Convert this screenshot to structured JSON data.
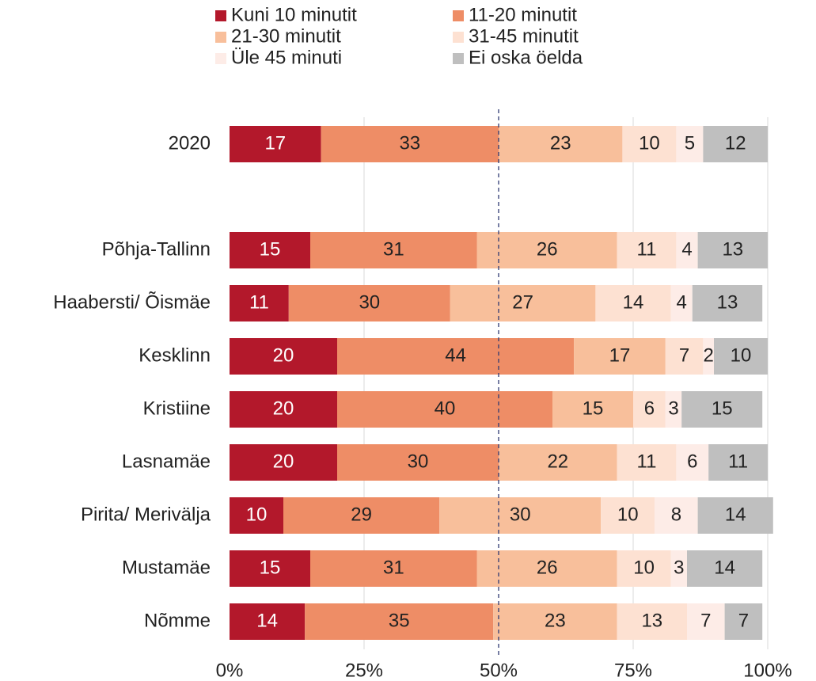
{
  "chart_data": {
    "type": "stacked_bar_horizontal",
    "categories": [
      "2020",
      null,
      "Põhja-Tallinn",
      "Haabersti/ Õismäe",
      "Kesklinn",
      "Kristiine",
      "Lasnamäe",
      "Pirita/ Merivälja",
      "Mustamäe",
      "Nõmme"
    ],
    "series": [
      {
        "name": "Kuni 10 minutit",
        "color": "#b3182b",
        "values": [
          17,
          null,
          15,
          11,
          20,
          20,
          20,
          10,
          15,
          14
        ]
      },
      {
        "name": "11-20 minutit",
        "color": "#ee8d66",
        "values": [
          33,
          null,
          31,
          30,
          44,
          40,
          30,
          29,
          31,
          35
        ]
      },
      {
        "name": "21-30 minutit",
        "color": "#f8bf9b",
        "values": [
          23,
          null,
          26,
          27,
          17,
          15,
          22,
          30,
          26,
          23
        ]
      },
      {
        "name": "31-45 minutit",
        "color": "#fde1d2",
        "values": [
          10,
          null,
          11,
          14,
          7,
          6,
          11,
          10,
          10,
          13
        ]
      },
      {
        "name": "Üle 45 minuti",
        "color": "#fdece7",
        "values": [
          5,
          null,
          4,
          4,
          2,
          3,
          6,
          8,
          3,
          7
        ]
      },
      {
        "name": "Ei oska öelda",
        "color": "#bfbfbf",
        "values": [
          12,
          null,
          13,
          13,
          10,
          15,
          11,
          14,
          14,
          7
        ]
      }
    ],
    "xlim": [
      0,
      100
    ],
    "xticks": [
      {
        "value": 0,
        "label": "0%"
      },
      {
        "value": 25,
        "label": "25%"
      },
      {
        "value": 50,
        "label": "50%"
      },
      {
        "value": 75,
        "label": "75%"
      },
      {
        "value": 100,
        "label": "100%"
      }
    ],
    "grid": true,
    "reference_line": {
      "value": 50,
      "color": "#2f3b73"
    },
    "legend": "top"
  }
}
